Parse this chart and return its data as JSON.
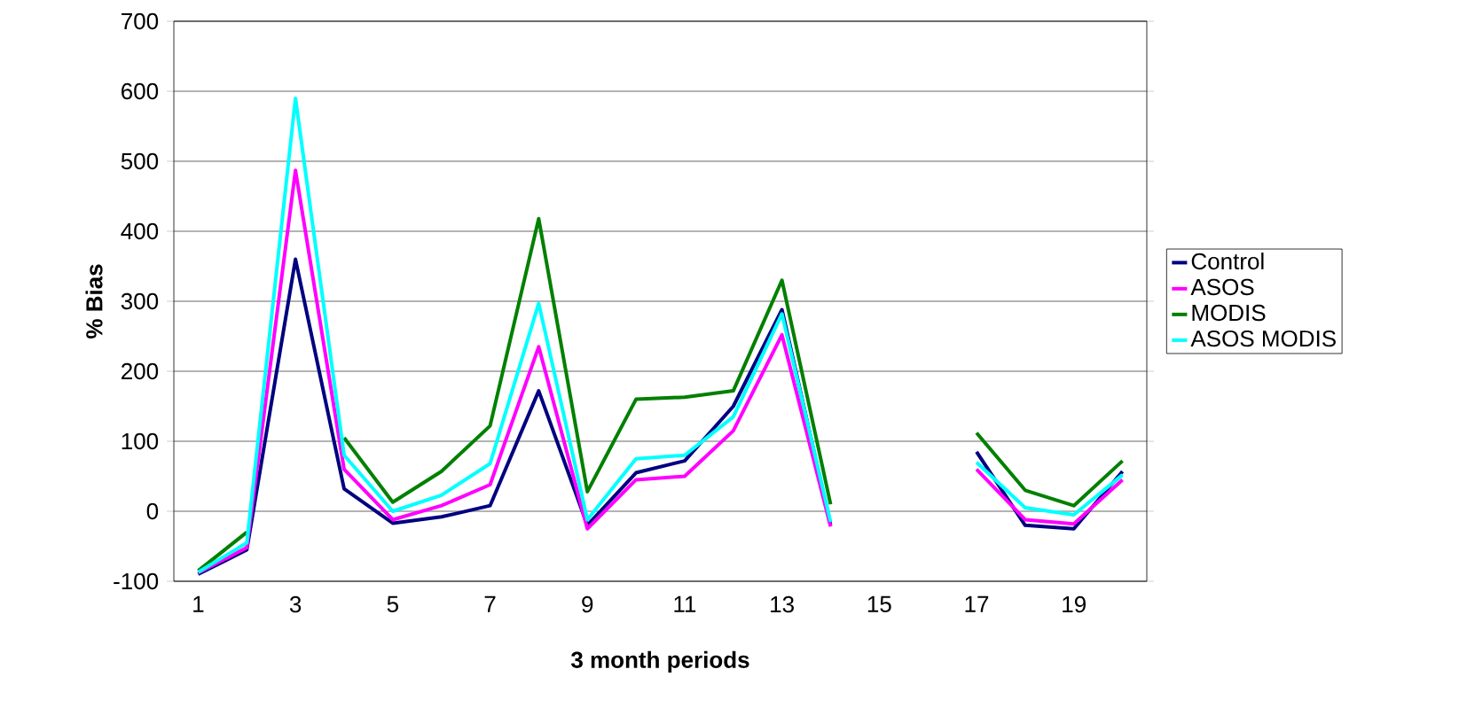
{
  "chart_data": {
    "type": "line",
    "xlabel": "3 month periods",
    "ylabel": "% Bias",
    "categories": [
      "1",
      null,
      "3",
      null,
      "5",
      null,
      "7",
      null,
      "9",
      null,
      "11",
      null,
      "13",
      null,
      "15",
      null,
      "17",
      null,
      "19",
      null
    ],
    "ylim": [
      -100,
      700
    ],
    "yticks": [
      -100,
      0,
      100,
      200,
      300,
      400,
      500,
      600,
      700
    ],
    "grid": "y",
    "legend": "right",
    "series": [
      {
        "name": "Control",
        "color": "#000080",
        "values": [
          -90,
          -55,
          360,
          32,
          -17,
          -8,
          8,
          172,
          -20,
          55,
          72,
          150,
          288,
          -20,
          null,
          null,
          85,
          -20,
          -25,
          57
        ]
      },
      {
        "name": "ASOS",
        "color": "#ff00ff",
        "values": [
          -88,
          -52,
          487,
          60,
          -12,
          8,
          38,
          235,
          -25,
          45,
          50,
          115,
          252,
          -22,
          null,
          null,
          60,
          -12,
          -18,
          45
        ]
      },
      {
        "name": "MODIS",
        "color": "#008000",
        "values": [
          -85,
          -30,
          null,
          105,
          13,
          57,
          122,
          418,
          28,
          160,
          163,
          172,
          330,
          10,
          null,
          null,
          112,
          30,
          8,
          72
        ]
      },
      {
        "name": "ASOS MODIS",
        "color": "#00ffff",
        "values": [
          -87,
          -45,
          590,
          80,
          0,
          23,
          68,
          297,
          -12,
          75,
          80,
          135,
          282,
          -15,
          null,
          null,
          70,
          5,
          -5,
          52
        ]
      }
    ]
  }
}
